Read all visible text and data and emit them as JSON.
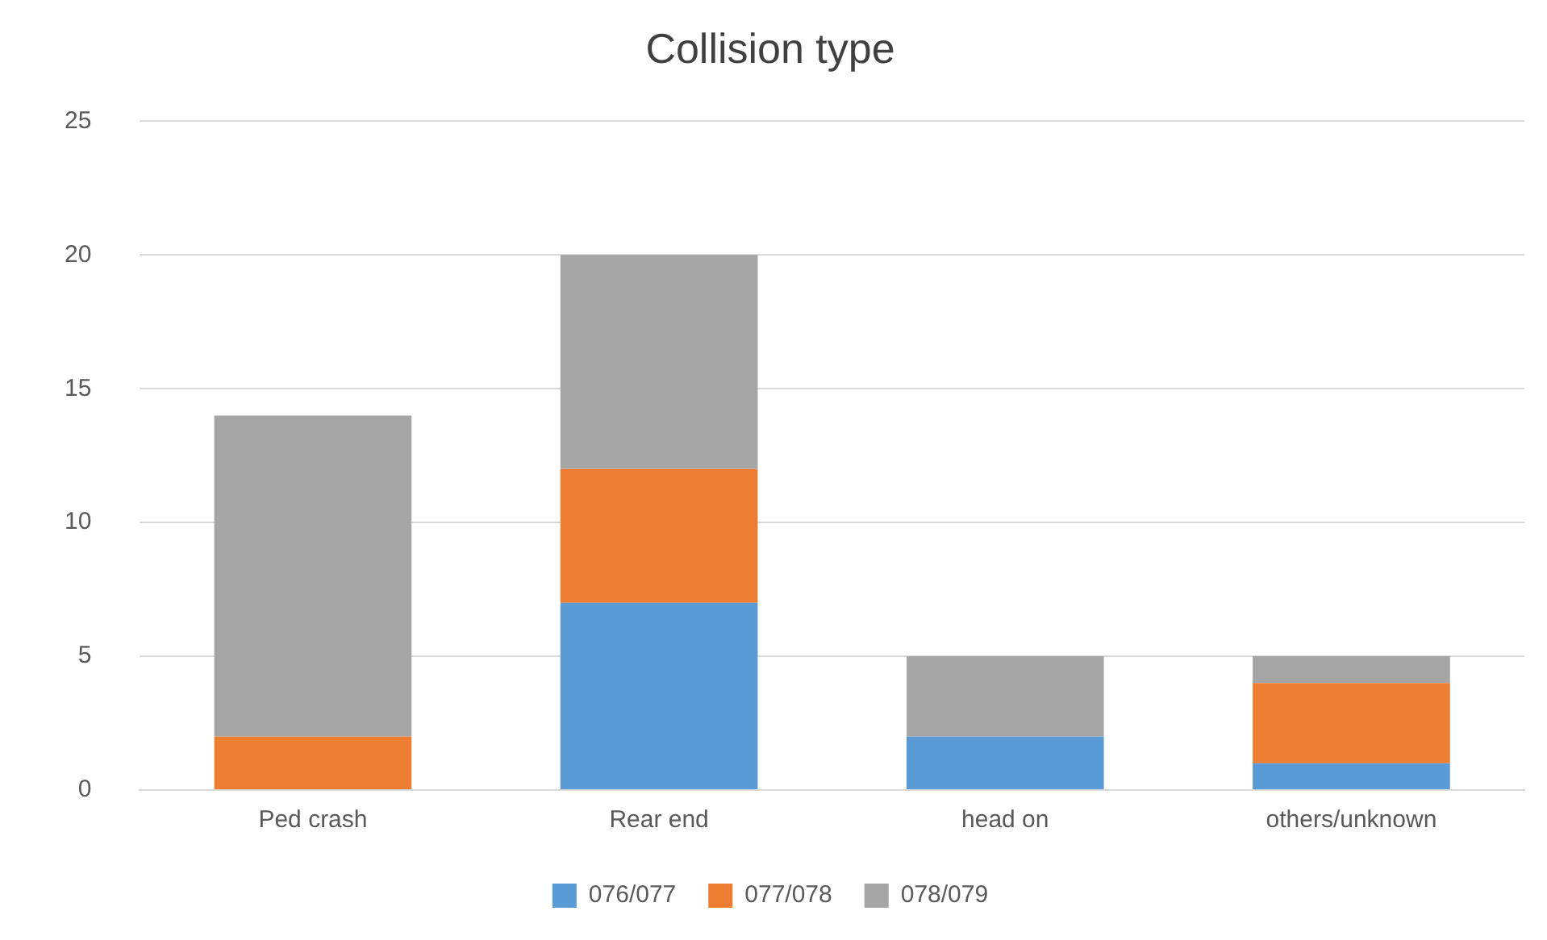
{
  "chart_data": {
    "type": "bar",
    "title": "Collision type",
    "categories": [
      "Ped crash",
      "Rear end",
      "head on",
      "others/unknown"
    ],
    "series": [
      {
        "name": "076/077",
        "color": "#5b9bd5",
        "values": [
          0,
          7,
          2,
          1
        ]
      },
      {
        "name": "077/078",
        "color": "#ed7d31",
        "values": [
          2,
          5,
          0,
          3
        ]
      },
      {
        "name": "078/079",
        "color": "#a5a5a5",
        "values": [
          12,
          8,
          3,
          1
        ]
      }
    ],
    "stacked": true,
    "ylim": [
      0,
      25
    ],
    "yticks": [
      0,
      5,
      10,
      15,
      20,
      25
    ],
    "grid": "y",
    "legend": "bottom"
  }
}
